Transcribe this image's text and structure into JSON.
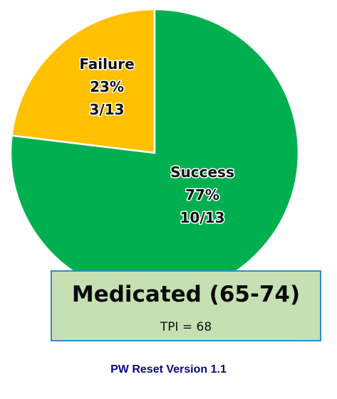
{
  "chart_data": {
    "type": "pie",
    "title": "",
    "slices": [
      {
        "label": "Failure",
        "percent_label": "23%",
        "count_label": "3/13",
        "value": 3,
        "color": "#ffc000"
      },
      {
        "label": "Success",
        "percent_label": "77%",
        "count_label": "10/13",
        "value": 10,
        "color": "#00b050"
      }
    ],
    "start_angle_deg": 0,
    "direction": "counterclockwise"
  },
  "info_box": {
    "title": "Medicated (65-74)",
    "subtitle": "TPI = 68",
    "background": "#c6e0b4",
    "border": "#2e8fc4"
  },
  "footer": {
    "text": "PW Reset Version 1.1",
    "color": "#0a0a7a"
  }
}
